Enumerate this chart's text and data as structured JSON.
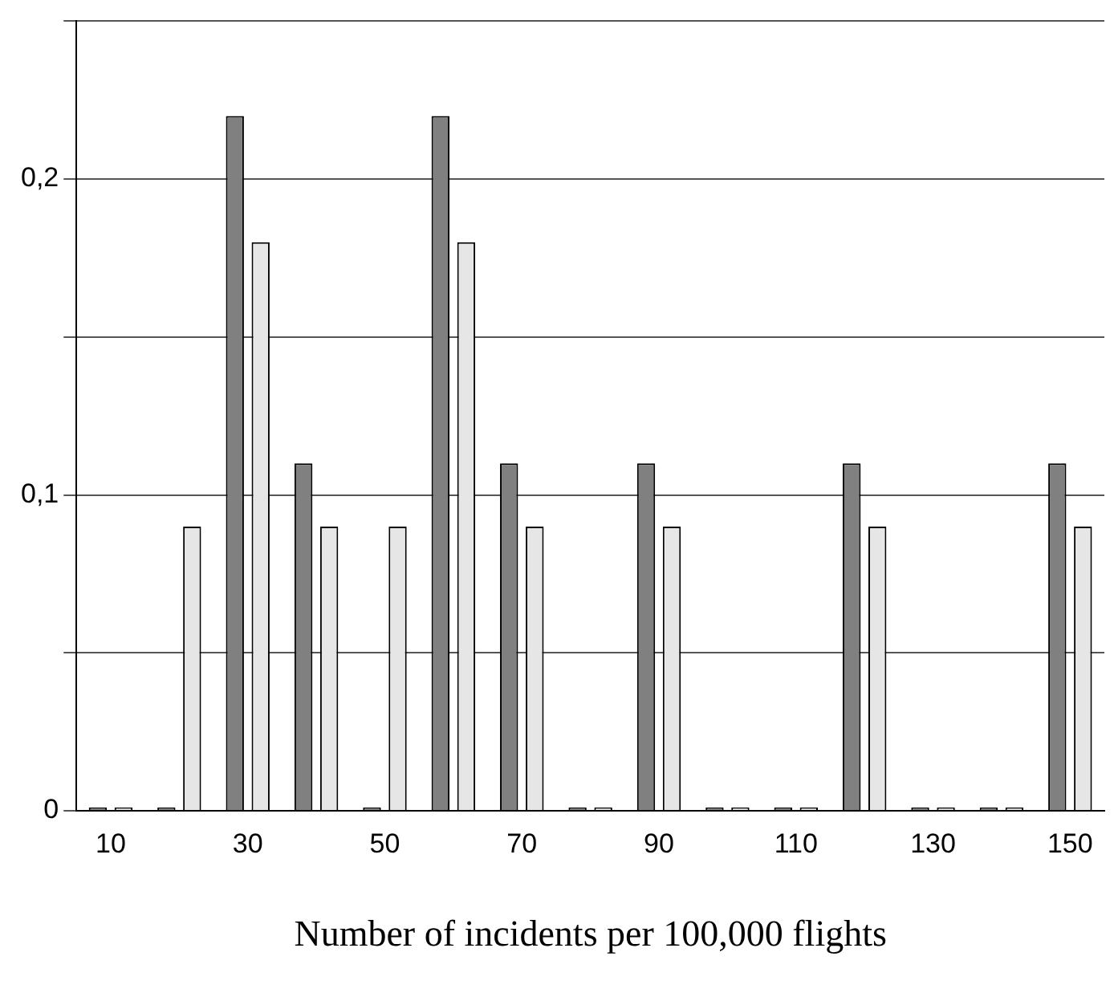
{
  "chart_data": {
    "type": "bar",
    "xlabel": "Number of incidents per 100,000 flights",
    "categories": [
      "10",
      null,
      "30",
      null,
      "50",
      null,
      "70",
      null,
      "90",
      null,
      "110",
      null,
      "130",
      null,
      "150"
    ],
    "series": [
      {
        "color": "#808080",
        "values": [
          0,
          0,
          0.22,
          0.11,
          0,
          0.22,
          0.11,
          0,
          0.11,
          0,
          0,
          0.11,
          0,
          0,
          0.11
        ]
      },
      {
        "color": "#e6e6e6",
        "values": [
          0,
          0.09,
          0.18,
          0.09,
          0.09,
          0.18,
          0.09,
          0,
          0.09,
          0,
          0,
          0.09,
          0,
          0,
          0.09
        ]
      }
    ],
    "ylim": [
      0,
      0.25
    ],
    "yticks": [
      {
        "value": 0,
        "label": "0"
      },
      {
        "value": 0.05,
        "label": null
      },
      {
        "value": 0.1,
        "label": "0,1"
      },
      {
        "value": 0.15,
        "label": null
      },
      {
        "value": 0.2,
        "label": "0,2"
      },
      {
        "value": 0.25,
        "label": null
      }
    ],
    "grid": "y",
    "legend": false
  }
}
